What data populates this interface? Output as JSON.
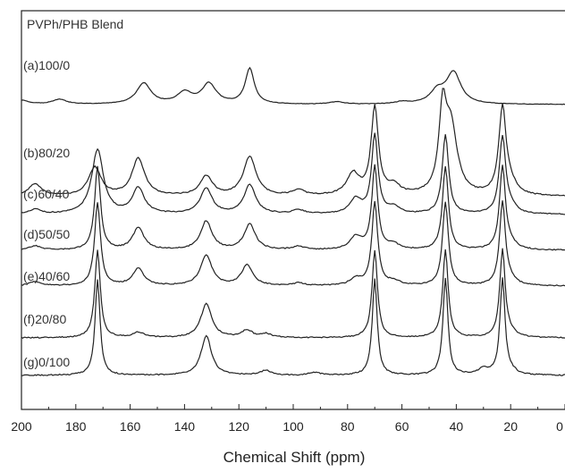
{
  "chart_data": {
    "type": "line",
    "title": "PVPh/PHB Blend",
    "xlabel": "Chemical Shift (ppm)",
    "ylabel": "",
    "xlim": [
      200,
      0
    ],
    "x_reversed": true,
    "x_ticks": [
      "200",
      "180",
      "160",
      "140",
      "120",
      "100",
      "80",
      "60",
      "40",
      "20",
      "0"
    ],
    "grid": false,
    "series": [
      {
        "name": "(a)100/0",
        "peaks": [
          [
            200,
            10
          ],
          [
            186,
            12
          ],
          [
            155,
            52
          ],
          [
            140,
            28
          ],
          [
            131,
            50
          ],
          [
            116,
            88
          ],
          [
            84,
            6
          ],
          [
            60,
            5
          ],
          [
            47,
            30
          ],
          [
            41,
            78
          ]
        ]
      },
      {
        "name": "(b)80/20",
        "peaks": [
          [
            195,
            14
          ],
          [
            173,
            32
          ],
          [
            157,
            42
          ],
          [
            132,
            22
          ],
          [
            116,
            44
          ],
          [
            98,
            6
          ],
          [
            78,
            24
          ],
          [
            70,
            98
          ],
          [
            63,
            10
          ],
          [
            45,
            85
          ],
          [
            42,
            75
          ],
          [
            23,
            97
          ],
          [
            20,
            10
          ]
        ]
      },
      {
        "name": "(c)60/40",
        "peaks": [
          [
            195,
            6
          ],
          [
            172,
            80
          ],
          [
            157,
            32
          ],
          [
            132,
            32
          ],
          [
            116,
            36
          ],
          [
            98,
            5
          ],
          [
            77,
            18
          ],
          [
            70,
            98
          ],
          [
            63,
            8
          ],
          [
            44,
            98
          ],
          [
            23,
            95
          ],
          [
            20,
            8
          ]
        ]
      },
      {
        "name": "(d)50/50",
        "peaks": [
          [
            195,
            5
          ],
          [
            172,
            98
          ],
          [
            157,
            26
          ],
          [
            132,
            34
          ],
          [
            116,
            30
          ],
          [
            98,
            4
          ],
          [
            77,
            15
          ],
          [
            70,
            98
          ],
          [
            63,
            6
          ],
          [
            44,
            98
          ],
          [
            23,
            98
          ],
          [
            20,
            6
          ]
        ]
      },
      {
        "name": "(e)40/60",
        "peaks": [
          [
            195,
            5
          ],
          [
            172,
            98
          ],
          [
            157,
            20
          ],
          [
            132,
            36
          ],
          [
            117,
            24
          ],
          [
            98,
            3
          ],
          [
            77,
            8
          ],
          [
            70,
            98
          ],
          [
            63,
            5
          ],
          [
            44,
            98
          ],
          [
            23,
            98
          ],
          [
            20,
            5
          ]
        ]
      },
      {
        "name": "(f)20/80",
        "peaks": [
          [
            172,
            98
          ],
          [
            157,
            6
          ],
          [
            132,
            38
          ],
          [
            117,
            8
          ],
          [
            110,
            4
          ],
          [
            70,
            98
          ],
          [
            44,
            98
          ],
          [
            23,
            98
          ],
          [
            20,
            4
          ]
        ]
      },
      {
        "name": "(g)0/100",
        "peaks": [
          [
            172,
            98
          ],
          [
            132,
            40
          ],
          [
            110,
            5
          ],
          [
            92,
            3
          ],
          [
            70,
            98
          ],
          [
            44,
            98
          ],
          [
            30,
            6
          ],
          [
            23,
            98
          ],
          [
            20,
            3
          ]
        ]
      }
    ]
  }
}
